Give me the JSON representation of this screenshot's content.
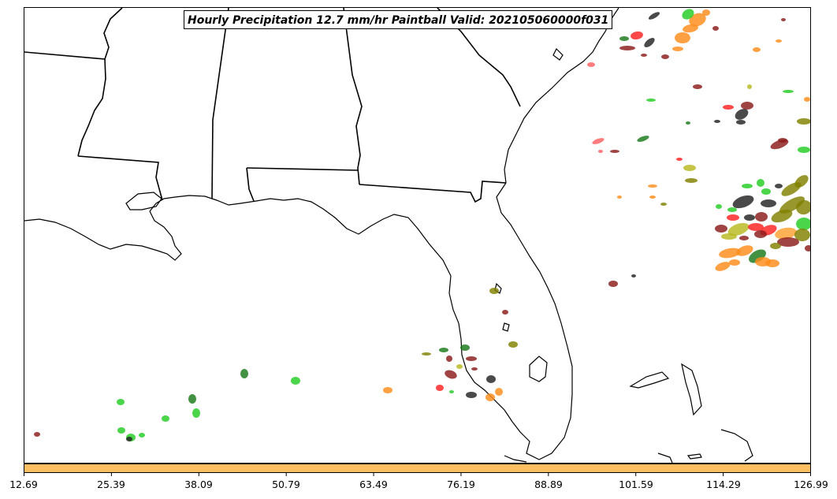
{
  "title": "Hourly Precipitation 12.7 mm/hr Paintball Valid: 202105060000f031",
  "colorbar": {
    "color": "#fdbf61",
    "ticks": [
      "12.69",
      "25.39",
      "38.09",
      "50.79",
      "63.49",
      "76.19",
      "88.89",
      "101.59",
      "114.29",
      "126.99"
    ]
  },
  "paintball_colors": [
    "#22cc22",
    "#1a7a1a",
    "#8b1a1a",
    "#222222",
    "#ff8c1a",
    "#ff2020",
    "#808000",
    "#b8b820",
    "#ff6060",
    "#ffa030"
  ]
}
